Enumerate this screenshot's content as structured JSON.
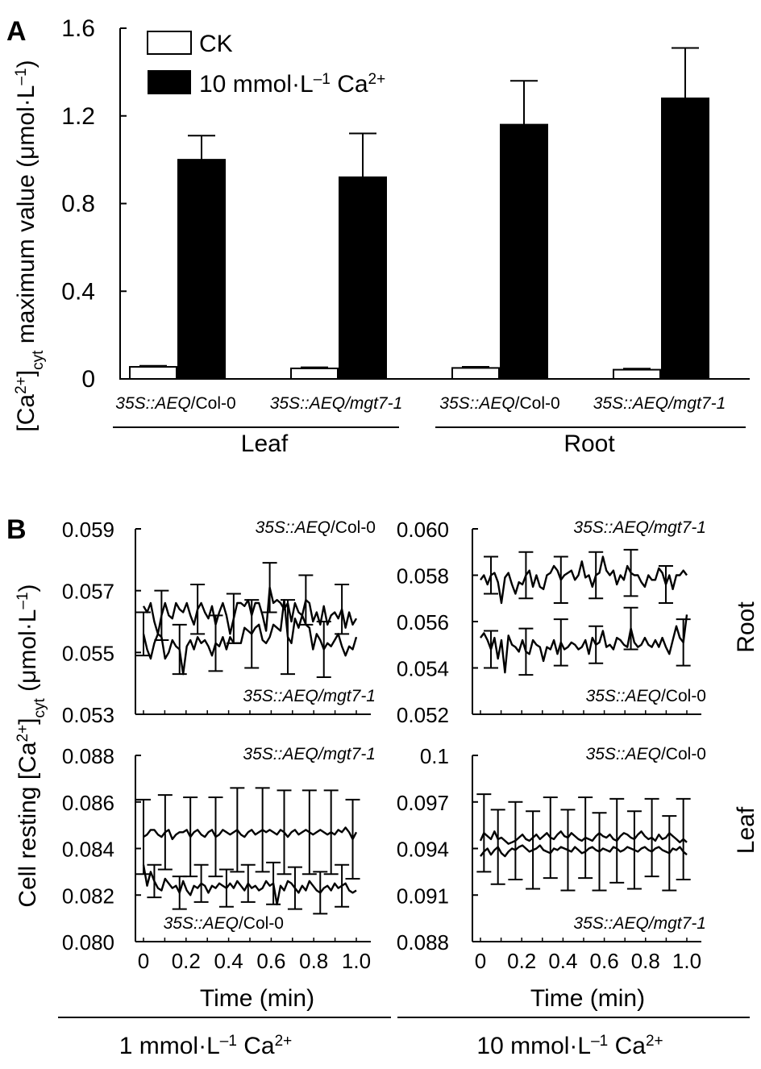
{
  "colors": {
    "ck": "#ffffff",
    "treated": "#000000",
    "line": "#000000"
  },
  "panel_labels": {
    "a": "A",
    "b": "B"
  },
  "chart_data": [
    {
      "type": "bar",
      "panel": "A",
      "ylabel_pre": "[Ca",
      "ylabel_sup": "2+",
      "ylabel_mid": "]",
      "ylabel_sub": "cyt",
      "ylabel_post": " maximum value (μmol·L",
      "ylabel_unit_sup": "–1",
      "ylabel_close": ")",
      "ylim": [
        0,
        1.6
      ],
      "yticks": [
        "0",
        "0.4",
        "0.8",
        "1.2",
        "1.6"
      ],
      "categories": [
        {
          "it": "35S::AEQ",
          "rest": "/Col-0"
        },
        {
          "it": "35S::AEQ",
          "rest": "/mgt7-1",
          "rest_italic": true
        },
        {
          "it": "35S::AEQ",
          "rest": "/Col-0"
        },
        {
          "it": "35S::AEQ",
          "rest": "/mgt7-1",
          "rest_italic": true
        }
      ],
      "groups": [
        "Leaf",
        "Root"
      ],
      "legend": {
        "position": "top-left",
        "ck": "CK",
        "treated_pre": "10 mmol·L",
        "treated_sup": "–1",
        "treated_mid": " Ca",
        "treated_sup2": "2+"
      },
      "series": [
        {
          "name": "CK",
          "values": [
            0.055,
            0.048,
            0.05,
            0.042
          ],
          "errors": [
            0.005,
            0.005,
            0.005,
            0.005
          ]
        },
        {
          "name": "10 mmol·L–1 Ca2+",
          "values": [
            1.0,
            0.92,
            1.16,
            1.28
          ],
          "errors": [
            0.11,
            0.2,
            0.2,
            0.23
          ]
        }
      ]
    },
    {
      "type": "line",
      "panel": "B-root-1mM",
      "ylim": [
        0.053,
        0.059
      ],
      "yticks": [
        "0.053",
        "0.055",
        "0.057",
        "0.059"
      ],
      "series": [
        {
          "name": "35S::AEQ/Col-0",
          "values": [
            0.0565,
            0.0563,
            0.0566,
            0.056,
            0.0556,
            0.0562,
            0.0566,
            0.0562,
            0.0561,
            0.0566,
            0.0564,
            0.0563,
            0.0566,
            0.0562,
            0.0559,
            0.0564,
            0.0566,
            0.0563,
            0.0561,
            0.0565,
            0.0559,
            0.0563,
            0.0566,
            0.0562,
            0.0556,
            0.0561,
            0.0566,
            0.0566,
            0.0565,
            0.0567,
            0.0562,
            0.0566,
            0.0566,
            0.0562,
            0.0557,
            0.0571,
            0.0566,
            0.0567,
            0.0566,
            0.0564,
            0.0566,
            0.056,
            0.0566,
            0.0563,
            0.0562,
            0.0567,
            0.0566,
            0.056,
            0.0563,
            0.0559,
            0.0565,
            0.0559,
            0.0562,
            0.0563,
            0.0561,
            0.0564,
            0.0558,
            0.0563,
            0.0559,
            0.0561
          ]
        },
        {
          "name": "35S::AEQ/mgt7-1",
          "values": [
            0.0556,
            0.0551,
            0.0548,
            0.0553,
            0.0556,
            0.0555,
            0.0548,
            0.055,
            0.0554,
            0.0552,
            0.0551,
            0.0543,
            0.0552,
            0.0554,
            0.0551,
            0.0555,
            0.0553,
            0.0554,
            0.0552,
            0.0549,
            0.0553,
            0.0552,
            0.0555,
            0.0551,
            0.0555,
            0.0553,
            0.0553,
            0.0553,
            0.0558,
            0.0557,
            0.0556,
            0.0558,
            0.0559,
            0.0554,
            0.0553,
            0.0555,
            0.0559,
            0.0558,
            0.0557,
            0.0567,
            0.0555,
            0.0553,
            0.0561,
            0.0558,
            0.0562,
            0.0559,
            0.0558,
            0.0551,
            0.0556,
            0.0554,
            0.0551,
            0.0553,
            0.0552,
            0.0554,
            0.0556,
            0.0552,
            0.0549,
            0.0552,
            0.0551,
            0.0555
          ]
        }
      ],
      "error_points": [
        {
          "s": 0,
          "idx": 5,
          "e": 0.0008
        },
        {
          "s": 0,
          "idx": 15,
          "e": 0.0008
        },
        {
          "s": 0,
          "idx": 25,
          "e": 0.0008
        },
        {
          "s": 0,
          "idx": 35,
          "e": 0.0008
        },
        {
          "s": 0,
          "idx": 45,
          "e": 0.0008
        },
        {
          "s": 0,
          "idx": 55,
          "e": 0.0008
        },
        {
          "s": 1,
          "idx": 0,
          "e": 0.0007
        },
        {
          "s": 1,
          "idx": 10,
          "e": 0.0008
        },
        {
          "s": 1,
          "idx": 20,
          "e": 0.0009
        },
        {
          "s": 1,
          "idx": 30,
          "e": 0.0011
        },
        {
          "s": 1,
          "idx": 40,
          "e": 0.0012
        },
        {
          "s": 1,
          "idx": 50,
          "e": 0.0009
        }
      ],
      "top_label": {
        "it": "35S::AEQ",
        "rest": "/Col-0",
        "rest_italic": false
      },
      "bottom_label": {
        "it": "35S::AEQ",
        "rest": "/mgt7-1",
        "rest_italic": true
      }
    },
    {
      "type": "line",
      "panel": "B-root-10mM",
      "ylim": [
        0.052,
        0.06
      ],
      "yticks": [
        "0.052",
        "0.054",
        "0.056",
        "0.058",
        "0.060"
      ],
      "series": [
        {
          "name": "35S::AEQ/mgt7-1",
          "values": [
            0.0578,
            0.058,
            0.0576,
            0.058,
            0.0581,
            0.0577,
            0.0568,
            0.0579,
            0.0581,
            0.0576,
            0.0572,
            0.0577,
            0.0576,
            0.058,
            0.0582,
            0.0575,
            0.058,
            0.0575,
            0.0574,
            0.058,
            0.0581,
            0.0584,
            0.0582,
            0.0578,
            0.058,
            0.0581,
            0.0582,
            0.0578,
            0.058,
            0.0586,
            0.0579,
            0.058,
            0.0575,
            0.058,
            0.0581,
            0.0588,
            0.0582,
            0.058,
            0.0582,
            0.0576,
            0.058,
            0.0578,
            0.0584,
            0.0581,
            0.058,
            0.058,
            0.0577,
            0.0575,
            0.058,
            0.0578,
            0.0578,
            0.0583,
            0.0581,
            0.0576,
            0.058,
            0.0574,
            0.058,
            0.058,
            0.0582,
            0.058
          ]
        },
        {
          "name": "35S::AEQ/Col-0",
          "values": [
            0.0553,
            0.0555,
            0.0552,
            0.0548,
            0.0553,
            0.0544,
            0.0552,
            0.0538,
            0.0554,
            0.055,
            0.0549,
            0.0547,
            0.0552,
            0.0547,
            0.0546,
            0.0552,
            0.055,
            0.0549,
            0.0543,
            0.0549,
            0.0548,
            0.0552,
            0.0546,
            0.0551,
            0.0548,
            0.0549,
            0.0551,
            0.055,
            0.0548,
            0.0549,
            0.0552,
            0.0546,
            0.0553,
            0.055,
            0.0551,
            0.0556,
            0.0549,
            0.055,
            0.0548,
            0.0553,
            0.0552,
            0.055,
            0.0549,
            0.0557,
            0.0551,
            0.0549,
            0.055,
            0.0553,
            0.055,
            0.0549,
            0.0552,
            0.0549,
            0.0553,
            0.0549,
            0.0546,
            0.0552,
            0.0558,
            0.0553,
            0.0551,
            0.0563
          ]
        }
      ],
      "error_points": [
        {
          "s": 0,
          "idx": 3,
          "e": 0.0008
        },
        {
          "s": 0,
          "idx": 13,
          "e": 0.001
        },
        {
          "s": 0,
          "idx": 23,
          "e": 0.001
        },
        {
          "s": 0,
          "idx": 33,
          "e": 0.001
        },
        {
          "s": 0,
          "idx": 43,
          "e": 0.001
        },
        {
          "s": 0,
          "idx": 53,
          "e": 0.0008
        },
        {
          "s": 1,
          "idx": 3,
          "e": 0.0008
        },
        {
          "s": 1,
          "idx": 13,
          "e": 0.001
        },
        {
          "s": 1,
          "idx": 23,
          "e": 0.001
        },
        {
          "s": 1,
          "idx": 33,
          "e": 0.0008
        },
        {
          "s": 1,
          "idx": 43,
          "e": 0.0009
        },
        {
          "s": 1,
          "idx": 58,
          "e": 0.001
        }
      ],
      "top_label": {
        "it": "35S::AEQ",
        "rest": "/mgt7-1",
        "rest_italic": true
      },
      "bottom_label": {
        "it": "35S::AEQ",
        "rest": "/Col-0",
        "rest_italic": false
      }
    },
    {
      "type": "line",
      "panel": "B-leaf-1mM",
      "ylim": [
        0.08,
        0.088
      ],
      "yticks": [
        "0.080",
        "0.082",
        "0.084",
        "0.086",
        "0.088"
      ],
      "series": [
        {
          "name": "35S::AEQ/mgt7-1",
          "values": [
            0.0845,
            0.0846,
            0.0848,
            0.0848,
            0.0846,
            0.0845,
            0.0847,
            0.0848,
            0.0844,
            0.0846,
            0.0847,
            0.0847,
            0.0848,
            0.0845,
            0.0847,
            0.0848,
            0.0846,
            0.0845,
            0.0847,
            0.0848,
            0.0845,
            0.0846,
            0.0848,
            0.0847,
            0.0846,
            0.0847,
            0.0848,
            0.0846,
            0.0845,
            0.0847,
            0.0848,
            0.0846,
            0.0847,
            0.0848,
            0.0847,
            0.0848,
            0.0847,
            0.0846,
            0.0848,
            0.0847,
            0.0845,
            0.0847,
            0.0848,
            0.0846,
            0.0847,
            0.0848,
            0.0847,
            0.0846,
            0.0847,
            0.0848,
            0.0847,
            0.0846,
            0.0847,
            0.0846,
            0.0848,
            0.0847,
            0.0849,
            0.0847,
            0.0844,
            0.0847
          ]
        },
        {
          "name": "35S::AEQ/Col-0",
          "values": [
            0.0833,
            0.0824,
            0.083,
            0.0826,
            0.0823,
            0.0822,
            0.0827,
            0.0825,
            0.0823,
            0.0824,
            0.0821,
            0.0826,
            0.0822,
            0.082,
            0.0824,
            0.0823,
            0.0825,
            0.0824,
            0.0821,
            0.0824,
            0.0823,
            0.0825,
            0.0824,
            0.0823,
            0.0825,
            0.0823,
            0.0826,
            0.0824,
            0.0822,
            0.0825,
            0.0823,
            0.0824,
            0.0822,
            0.0823,
            0.0826,
            0.0824,
            0.0825,
            0.0816,
            0.0824,
            0.0822,
            0.0826,
            0.0825,
            0.0823,
            0.0821,
            0.0824,
            0.0822,
            0.0826,
            0.0824,
            0.0822,
            0.0821,
            0.0823,
            0.0824,
            0.0822,
            0.0825,
            0.0823,
            0.0824,
            0.0825,
            0.0822,
            0.0821,
            0.0822
          ]
        }
      ],
      "error_points": [
        {
          "s": 0,
          "idx": 0,
          "e": 0.0016
        },
        {
          "s": 0,
          "idx": 6,
          "e": 0.0016
        },
        {
          "s": 0,
          "idx": 13,
          "e": 0.0017
        },
        {
          "s": 0,
          "idx": 20,
          "e": 0.0017
        },
        {
          "s": 0,
          "idx": 26,
          "e": 0.0018
        },
        {
          "s": 0,
          "idx": 33,
          "e": 0.0018
        },
        {
          "s": 0,
          "idx": 39,
          "e": 0.0018
        },
        {
          "s": 0,
          "idx": 46,
          "e": 0.0018
        },
        {
          "s": 0,
          "idx": 52,
          "e": 0.0018
        },
        {
          "s": 0,
          "idx": 58,
          "e": 0.0017
        },
        {
          "s": 1,
          "idx": 3,
          "e": 0.0007
        },
        {
          "s": 1,
          "idx": 10,
          "e": 0.0007
        },
        {
          "s": 1,
          "idx": 16,
          "e": 0.0008
        },
        {
          "s": 1,
          "idx": 23,
          "e": 0.0008
        },
        {
          "s": 1,
          "idx": 29,
          "e": 0.0008
        },
        {
          "s": 1,
          "idx": 36,
          "e": 0.0009
        },
        {
          "s": 1,
          "idx": 42,
          "e": 0.0009
        },
        {
          "s": 1,
          "idx": 49,
          "e": 0.0009
        },
        {
          "s": 1,
          "idx": 55,
          "e": 0.0009
        }
      ],
      "top_label": {
        "it": "35S::AEQ",
        "rest": "/mgt7-1",
        "rest_italic": true
      },
      "bottom_label": {
        "it": "35S::AEQ",
        "rest": "/Col-0",
        "rest_italic": false
      }
    },
    {
      "type": "line",
      "panel": "B-leaf-10mM",
      "ylim": [
        0.088,
        0.1
      ],
      "yticks": [
        "0.088",
        "0.091",
        "0.094",
        "0.097",
        "0.1"
      ],
      "series": [
        {
          "name": "35S::AEQ/Col-0",
          "values": [
            0.0945,
            0.095,
            0.0948,
            0.0946,
            0.0951,
            0.0946,
            0.0947,
            0.0945,
            0.0943,
            0.0944,
            0.0945,
            0.0947,
            0.0949,
            0.0946,
            0.0945,
            0.0947,
            0.0949,
            0.0946,
            0.0948,
            0.095,
            0.0947,
            0.0946,
            0.0949,
            0.0951,
            0.0948,
            0.0947,
            0.095,
            0.0948,
            0.0946,
            0.0945,
            0.0947,
            0.0946,
            0.0945,
            0.0948,
            0.095,
            0.0948,
            0.0947,
            0.0949,
            0.0946,
            0.0945,
            0.0948,
            0.095,
            0.0949,
            0.0947,
            0.0946,
            0.0949,
            0.0951,
            0.0948,
            0.0946,
            0.0947,
            0.0945,
            0.0949,
            0.0946,
            0.0947,
            0.095,
            0.0948,
            0.0946,
            0.0944,
            0.0946,
            0.0944
          ]
        },
        {
          "name": "35S::AEQ/mgt7-1",
          "values": [
            0.0935,
            0.0938,
            0.094,
            0.0936,
            0.0939,
            0.0941,
            0.0937,
            0.0935,
            0.0938,
            0.094,
            0.0939,
            0.0941,
            0.0942,
            0.094,
            0.0938,
            0.0939,
            0.094,
            0.0942,
            0.0939,
            0.0938,
            0.0937,
            0.094,
            0.0939,
            0.0941,
            0.094,
            0.0939,
            0.0938,
            0.0941,
            0.0939,
            0.0937,
            0.0938,
            0.094,
            0.0941,
            0.0939,
            0.0938,
            0.094,
            0.0939,
            0.0938,
            0.0941,
            0.094,
            0.0938,
            0.0939,
            0.0941,
            0.094,
            0.0939,
            0.0938,
            0.094,
            0.0941,
            0.0939,
            0.0938,
            0.094,
            0.0941,
            0.0939,
            0.0938,
            0.0937,
            0.094,
            0.0939,
            0.0941,
            0.0938,
            0.0936
          ]
        }
      ],
      "error_points": [
        {
          "s": 0,
          "idx": 1,
          "e": 0.0025
        },
        {
          "s": 0,
          "idx": 10,
          "e": 0.0025
        },
        {
          "s": 0,
          "idx": 20,
          "e": 0.0026
        },
        {
          "s": 0,
          "idx": 30,
          "e": 0.0026
        },
        {
          "s": 0,
          "idx": 39,
          "e": 0.0027
        },
        {
          "s": 0,
          "idx": 49,
          "e": 0.0025
        },
        {
          "s": 0,
          "idx": 58,
          "e": 0.0026
        },
        {
          "s": 1,
          "idx": 5,
          "e": 0.0024
        },
        {
          "s": 1,
          "idx": 15,
          "e": 0.0025
        },
        {
          "s": 1,
          "idx": 25,
          "e": 0.0026
        },
        {
          "s": 1,
          "idx": 34,
          "e": 0.0025
        },
        {
          "s": 1,
          "idx": 44,
          "e": 0.0025
        },
        {
          "s": 1,
          "idx": 54,
          "e": 0.0024
        }
      ],
      "top_label": {
        "it": "35S::AEQ",
        "rest": "/Col-0",
        "rest_italic": false
      },
      "bottom_label": {
        "it": "35S::AEQ",
        "rest": "/mgt7-1",
        "rest_italic": true
      }
    }
  ],
  "panel_b": {
    "xlim": [
      0,
      1.0
    ],
    "xticks": [
      "0",
      "0.2",
      "0.4",
      "0.6",
      "0.8",
      "1.0"
    ],
    "xlabel": "Time (min)",
    "ylabel_pre": "Cell resting [Ca",
    "ylabel_sup": "2+",
    "ylabel_mid": "]",
    "ylabel_sub": "cyt",
    "ylabel_post": " (μmol·L",
    "ylabel_unit_sup": "–1",
    "ylabel_close": ")",
    "row_labels": [
      "Root",
      "Leaf"
    ],
    "col_labels": [
      {
        "pre": "1 mmol·L",
        "sup": "–1",
        "mid": " Ca",
        "sup2": "2+"
      },
      {
        "pre": "10 mmol·L",
        "sup": "–1",
        "mid": " Ca",
        "sup2": "2+"
      }
    ]
  }
}
